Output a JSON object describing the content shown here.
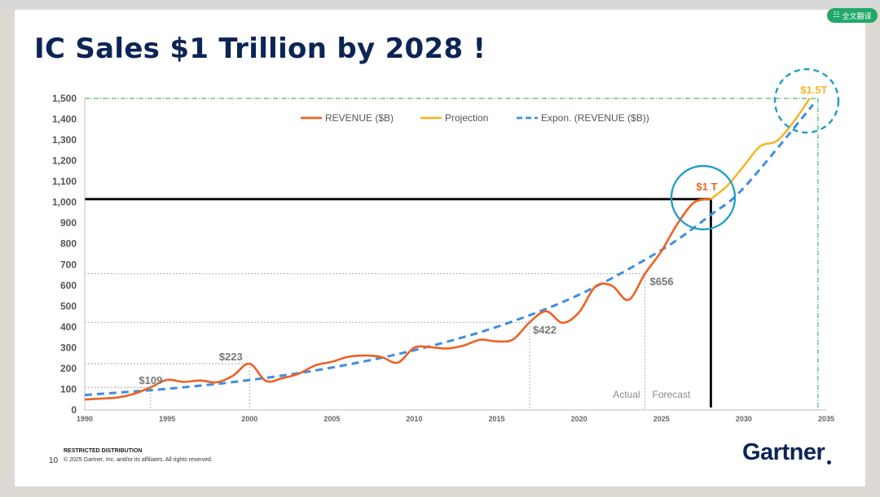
{
  "slide": {
    "title": "IC Sales $1 Trillion by 2028 !",
    "restricted": "RESTRICTED DISTRIBUTION",
    "page_number": "10",
    "copyright": "© 2025 Gartner, Inc. and/or its affiliates. All rights reserved.",
    "logo": "Gartner"
  },
  "translate_button": {
    "label": "全文翻译",
    "icon": "translate-icon"
  },
  "colors": {
    "revenue": "#ee6124",
    "projection": "#f2b829",
    "expon": "#3f8ee2",
    "circle": "#1f9fc6",
    "title": "#0c2456",
    "grid": "#2aa552"
  },
  "chart_data": {
    "type": "line",
    "title": "IC Sales $1 Trillion by 2028 !",
    "xlabel": "",
    "ylabel": "",
    "xlim": [
      1990,
      2035
    ],
    "ylim": [
      0,
      1500
    ],
    "x_ticks": [
      "1990",
      "1995",
      "2000",
      "2005",
      "2010",
      "2015",
      "2020",
      "2025",
      "2030",
      "2035"
    ],
    "y_ticks": [
      "0",
      "100",
      "200",
      "300",
      "400",
      "500",
      "600",
      "700",
      "800",
      "900",
      "1,000",
      "1,100",
      "1,200",
      "1,300",
      "1,400",
      "1,500"
    ],
    "legend": [
      "REVENUE ($B)",
      "Projection",
      "Expon. (REVENUE ($B))"
    ],
    "legend_position": "top-center",
    "series": [
      {
        "name": "REVENUE ($B)",
        "x": [
          1990,
          1991,
          1992,
          1993,
          1994,
          1995,
          1996,
          1997,
          1998,
          1999,
          2000,
          2001,
          2002,
          2003,
          2004,
          2005,
          2006,
          2007,
          2008,
          2009,
          2010,
          2011,
          2012,
          2013,
          2014,
          2015,
          2016,
          2017,
          2018,
          2019,
          2020,
          2021,
          2022,
          2023,
          2024,
          2025,
          2026,
          2027,
          2028
        ],
        "values": [
          50,
          55,
          60,
          78,
          109,
          145,
          135,
          142,
          133,
          165,
          223,
          140,
          153,
          175,
          215,
          232,
          256,
          262,
          255,
          228,
          300,
          302,
          296,
          310,
          338,
          330,
          340,
          422,
          475,
          420,
          470,
          595,
          598,
          530,
          656,
          765,
          900,
          1000,
          1015
        ]
      },
      {
        "name": "Projection",
        "x": [
          2028,
          2029,
          2030,
          2031,
          2032,
          2033,
          2034
        ],
        "values": [
          1015,
          1080,
          1175,
          1270,
          1295,
          1385,
          1500
        ]
      },
      {
        "name": "Expon. (REVENUE ($B))",
        "x": [
          1990,
          1995,
          2000,
          2005,
          2010,
          2015,
          2020,
          2025,
          2028,
          2030,
          2034.2
        ],
        "values": [
          72,
          102,
          144,
          204,
          288,
          400,
          555,
          770,
          940,
          1070,
          1470
        ]
      }
    ],
    "reference_lines": {
      "x": [
        1994,
        2000,
        2017,
        2024
      ],
      "y": [
        109,
        223,
        422,
        656
      ],
      "trillion_y": 1015,
      "trillion_x": 2028,
      "projection_x": 2034.5
    },
    "annotations": [
      {
        "label": "$109",
        "x": 1994,
        "y": 109
      },
      {
        "label": "$223",
        "x": 2000,
        "y": 223
      },
      {
        "label": "$422",
        "x": 2017,
        "y": 422
      },
      {
        "label": "$656",
        "x": 2024,
        "y": 656
      },
      {
        "label": "$1 T",
        "x": 2028,
        "y": 1015
      },
      {
        "label": "$1.5T",
        "x": 2034.5,
        "y": 1500
      }
    ],
    "period_labels": {
      "actual": "Actual",
      "forecast": "Forecast",
      "divider_x": 2024
    }
  }
}
